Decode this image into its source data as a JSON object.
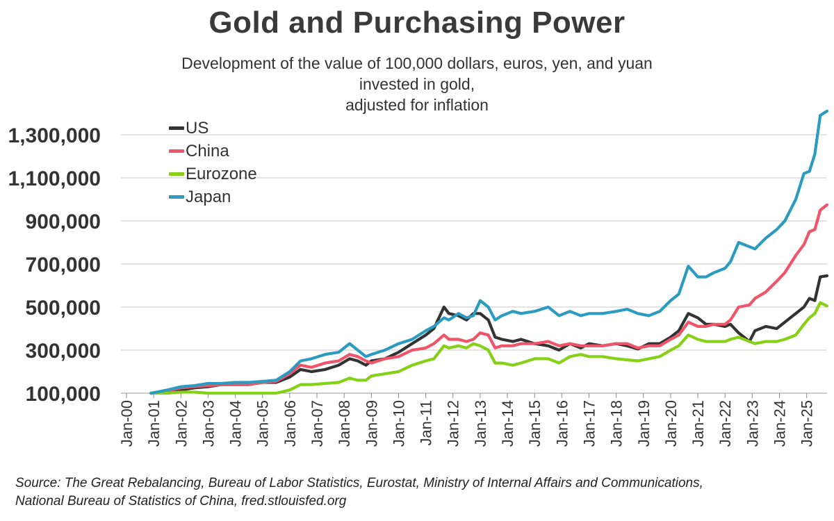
{
  "chart_data": {
    "type": "line",
    "title": "Gold and Purchasing Power",
    "subtitle_line1": "Development of the value of 100,000 dollars, euros, yen, and yuan invested in gold,",
    "subtitle_line2": "adjusted for inflation",
    "xlabel": "",
    "ylabel": "",
    "ylim": [
      100000,
      1400000
    ],
    "yticks": [
      100000,
      300000,
      500000,
      700000,
      900000,
      1100000,
      1300000
    ],
    "ytick_labels": [
      "100,000",
      "300,000",
      "500,000",
      "700,000",
      "900,000",
      "1,100,000",
      "1,300,000"
    ],
    "xlim": [
      2000.0,
      2025.75
    ],
    "xtick_labels": [
      "Jan-00",
      "Jan-01",
      "Jan-02",
      "Jan-03",
      "Jan-04",
      "Jan-05",
      "Jan-06",
      "Jan-07",
      "Jan-08",
      "Jan-09",
      "Jan-10",
      "Jan-11",
      "Jan-12",
      "Jan-13",
      "Jan-14",
      "Jan-15",
      "Jan-16",
      "Jan-17",
      "Jan-18",
      "Jan-19",
      "Jan-20",
      "Jan-21",
      "Jan-22",
      "Jan-23",
      "Jan-24",
      "Jan-25"
    ],
    "legend_position": "top-left",
    "series": [
      {
        "name": "US",
        "color": "#333333",
        "x": [
          2000.9,
          2001.5,
          2002.0,
          2002.5,
          2003.0,
          2003.5,
          2004.0,
          2004.5,
          2005.0,
          2005.5,
          2006.0,
          2006.4,
          2006.8,
          2007.3,
          2007.8,
          2008.2,
          2008.5,
          2008.8,
          2009.0,
          2009.5,
          2010.0,
          2010.5,
          2011.0,
          2011.3,
          2011.67,
          2011.85,
          2012.2,
          2012.5,
          2012.75,
          2013.0,
          2013.3,
          2013.55,
          2013.8,
          2014.2,
          2014.5,
          2015.0,
          2015.5,
          2015.9,
          2016.3,
          2016.7,
          2017.0,
          2017.5,
          2018.0,
          2018.4,
          2018.8,
          2019.2,
          2019.6,
          2020.0,
          2020.3,
          2020.65,
          2021.0,
          2021.3,
          2021.6,
          2022.0,
          2022.2,
          2022.5,
          2022.9,
          2023.1,
          2023.5,
          2023.9,
          2024.2,
          2024.6,
          2024.9,
          2025.1,
          2025.3,
          2025.5,
          2025.75
        ],
        "values": [
          100000,
          105000,
          115000,
          125000,
          130000,
          140000,
          140000,
          140000,
          150000,
          150000,
          175000,
          210000,
          200000,
          210000,
          230000,
          260000,
          250000,
          230000,
          250000,
          260000,
          290000,
          330000,
          370000,
          400000,
          500000,
          470000,
          460000,
          440000,
          470000,
          470000,
          440000,
          360000,
          350000,
          340000,
          350000,
          330000,
          320000,
          300000,
          330000,
          310000,
          330000,
          320000,
          330000,
          320000,
          305000,
          330000,
          330000,
          360000,
          390000,
          470000,
          450000,
          420000,
          420000,
          410000,
          420000,
          380000,
          340000,
          390000,
          410000,
          400000,
          430000,
          470000,
          500000,
          540000,
          530000,
          640000,
          645000
        ]
      },
      {
        "name": "China",
        "color": "#f05468",
        "x": [
          2000.9,
          2001.5,
          2002.0,
          2002.5,
          2003.0,
          2003.5,
          2004.0,
          2004.5,
          2005.0,
          2005.5,
          2006.0,
          2006.4,
          2006.8,
          2007.3,
          2007.8,
          2008.2,
          2008.5,
          2008.8,
          2009.0,
          2009.5,
          2010.0,
          2010.5,
          2011.0,
          2011.3,
          2011.67,
          2011.85,
          2012.2,
          2012.5,
          2012.75,
          2013.0,
          2013.3,
          2013.55,
          2013.8,
          2014.2,
          2014.5,
          2015.0,
          2015.5,
          2015.9,
          2016.3,
          2016.7,
          2017.0,
          2017.5,
          2018.0,
          2018.4,
          2018.8,
          2019.2,
          2019.6,
          2020.0,
          2020.3,
          2020.65,
          2021.0,
          2021.3,
          2021.6,
          2022.0,
          2022.2,
          2022.5,
          2022.9,
          2023.1,
          2023.5,
          2023.9,
          2024.2,
          2024.6,
          2024.9,
          2025.1,
          2025.3,
          2025.5,
          2025.75
        ],
        "values": [
          100000,
          110000,
          125000,
          130000,
          135000,
          140000,
          140000,
          140000,
          150000,
          155000,
          190000,
          230000,
          220000,
          240000,
          250000,
          280000,
          270000,
          250000,
          240000,
          260000,
          270000,
          300000,
          310000,
          330000,
          370000,
          350000,
          350000,
          340000,
          350000,
          380000,
          370000,
          310000,
          320000,
          320000,
          330000,
          330000,
          340000,
          320000,
          330000,
          320000,
          320000,
          320000,
          330000,
          330000,
          310000,
          320000,
          320000,
          350000,
          370000,
          430000,
          410000,
          410000,
          420000,
          420000,
          440000,
          500000,
          510000,
          540000,
          570000,
          620000,
          660000,
          740000,
          790000,
          850000,
          860000,
          950000,
          975000
        ]
      },
      {
        "name": "Eurozone",
        "color": "#86d017",
        "x": [
          2000.9,
          2001.5,
          2002.0,
          2002.5,
          2003.0,
          2003.5,
          2004.0,
          2004.5,
          2005.0,
          2005.5,
          2006.0,
          2006.4,
          2006.8,
          2007.3,
          2007.8,
          2008.2,
          2008.5,
          2008.8,
          2009.0,
          2009.5,
          2010.0,
          2010.5,
          2011.0,
          2011.3,
          2011.67,
          2011.85,
          2012.2,
          2012.5,
          2012.75,
          2013.0,
          2013.3,
          2013.55,
          2013.8,
          2014.2,
          2014.5,
          2015.0,
          2015.5,
          2015.9,
          2016.3,
          2016.7,
          2017.0,
          2017.5,
          2018.0,
          2018.4,
          2018.8,
          2019.2,
          2019.6,
          2020.0,
          2020.3,
          2020.65,
          2021.0,
          2021.3,
          2021.6,
          2022.0,
          2022.2,
          2022.5,
          2022.9,
          2023.1,
          2023.5,
          2023.9,
          2024.2,
          2024.6,
          2024.9,
          2025.1,
          2025.3,
          2025.5,
          2025.75
        ],
        "values": [
          100000,
          100000,
          105000,
          105000,
          100000,
          100000,
          100000,
          100000,
          100000,
          100000,
          115000,
          140000,
          140000,
          145000,
          150000,
          170000,
          160000,
          160000,
          180000,
          190000,
          200000,
          230000,
          250000,
          260000,
          320000,
          310000,
          320000,
          310000,
          330000,
          320000,
          300000,
          240000,
          240000,
          230000,
          240000,
          260000,
          260000,
          240000,
          270000,
          280000,
          270000,
          270000,
          260000,
          255000,
          250000,
          260000,
          270000,
          300000,
          320000,
          370000,
          350000,
          340000,
          340000,
          340000,
          350000,
          360000,
          340000,
          330000,
          340000,
          340000,
          350000,
          370000,
          420000,
          450000,
          470000,
          520000,
          505000
        ]
      },
      {
        "name": "Japan",
        "color": "#2b9bbf",
        "x": [
          2000.9,
          2001.5,
          2002.0,
          2002.5,
          2003.0,
          2003.5,
          2004.0,
          2004.5,
          2005.0,
          2005.5,
          2006.0,
          2006.4,
          2006.8,
          2007.3,
          2007.8,
          2008.2,
          2008.5,
          2008.8,
          2009.0,
          2009.5,
          2010.0,
          2010.5,
          2011.0,
          2011.3,
          2011.67,
          2011.85,
          2012.2,
          2012.5,
          2012.75,
          2013.0,
          2013.3,
          2013.55,
          2013.8,
          2014.2,
          2014.5,
          2015.0,
          2015.5,
          2015.9,
          2016.3,
          2016.7,
          2017.0,
          2017.5,
          2018.0,
          2018.4,
          2018.8,
          2019.2,
          2019.6,
          2020.0,
          2020.3,
          2020.65,
          2021.0,
          2021.3,
          2021.6,
          2022.0,
          2022.2,
          2022.5,
          2022.9,
          2023.1,
          2023.5,
          2023.9,
          2024.2,
          2024.6,
          2024.9,
          2025.1,
          2025.3,
          2025.5,
          2025.75
        ],
        "values": [
          100000,
          115000,
          130000,
          135000,
          145000,
          145000,
          150000,
          150000,
          155000,
          160000,
          200000,
          250000,
          260000,
          280000,
          290000,
          330000,
          300000,
          270000,
          280000,
          300000,
          330000,
          350000,
          390000,
          410000,
          450000,
          440000,
          470000,
          450000,
          460000,
          530000,
          500000,
          440000,
          460000,
          480000,
          470000,
          480000,
          500000,
          460000,
          480000,
          460000,
          470000,
          470000,
          480000,
          490000,
          470000,
          460000,
          480000,
          530000,
          560000,
          690000,
          640000,
          640000,
          660000,
          680000,
          710000,
          800000,
          780000,
          770000,
          820000,
          860000,
          900000,
          1000000,
          1120000,
          1130000,
          1210000,
          1390000,
          1410000
        ]
      }
    ]
  }
}
